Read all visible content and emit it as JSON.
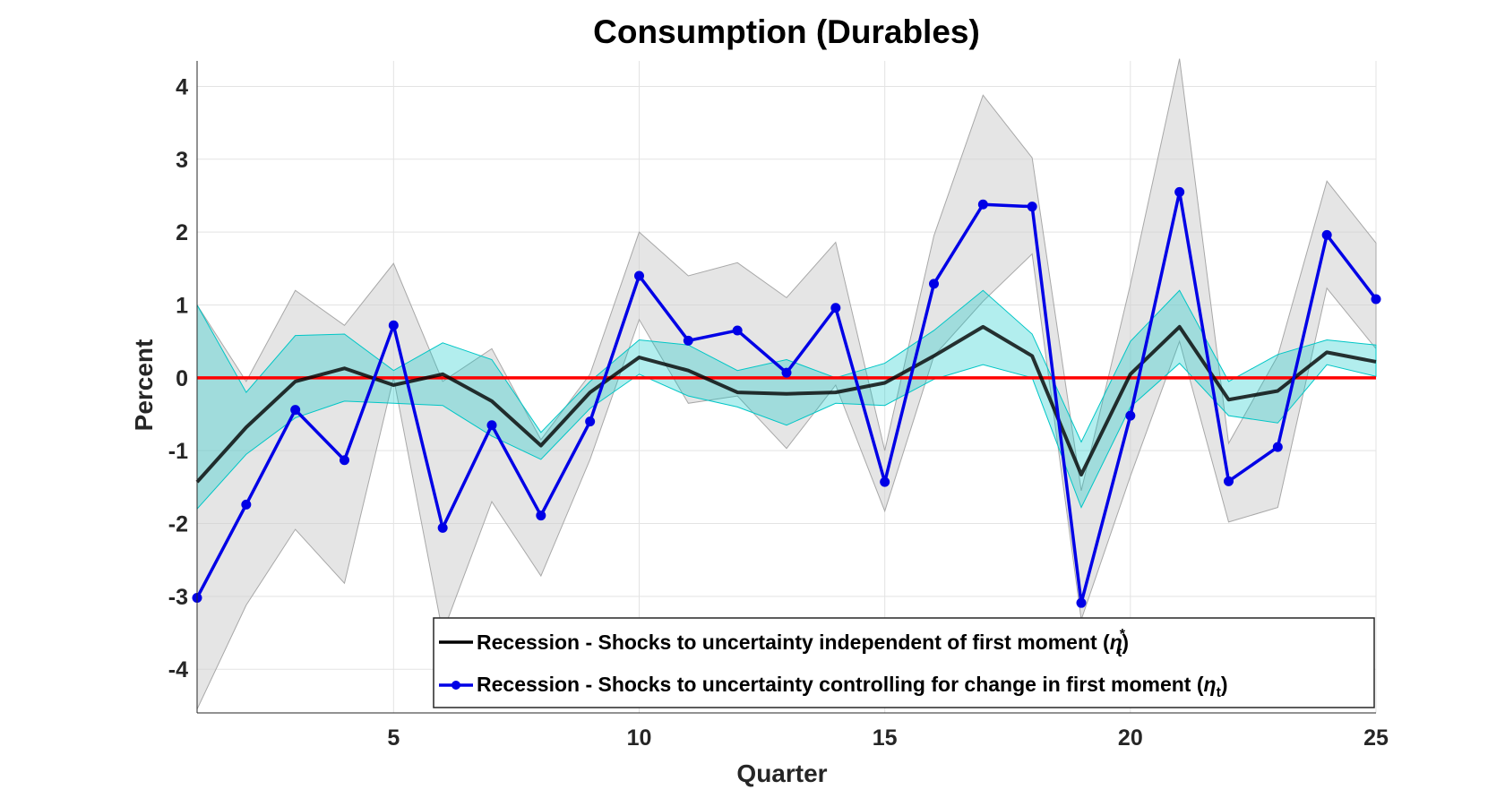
{
  "chart_data": {
    "type": "line",
    "title": "Consumption (Durables)",
    "xlabel": "Quarter",
    "ylabel": "Percent",
    "xlim": [
      1,
      25
    ],
    "ylim": [
      -4.6,
      4.35
    ],
    "xticks": [
      5,
      10,
      15,
      20,
      25
    ],
    "xtick_labels": [
      "5",
      "10",
      "15",
      "20",
      "25"
    ],
    "yticks": [
      4,
      3,
      2,
      1,
      0,
      -1,
      -2,
      -3,
      -4
    ],
    "ytick_labels": [
      "4",
      "3",
      "2",
      "1",
      "0",
      "-1",
      "-2",
      "-3",
      "-4"
    ],
    "grid": true,
    "legend_position": "bottom-right",
    "x": [
      1,
      2,
      3,
      4,
      5,
      6,
      7,
      8,
      9,
      10,
      11,
      12,
      13,
      14,
      15,
      16,
      17,
      18,
      19,
      20,
      21,
      22,
      23,
      24,
      25
    ],
    "zero_line": {
      "value": 0,
      "color": "#ff0000"
    },
    "series": [
      {
        "name": "Recession - Shocks to uncertainty independent of first moment",
        "legend_text": "Recession - Shocks to uncertainty independent of first moment (",
        "legend_symbol": "η",
        "legend_subscript": "t",
        "legend_superscript": "*",
        "legend_close": ")",
        "color": "#000000",
        "marker": "none",
        "values": [
          -1.43,
          -0.68,
          -0.05,
          0.13,
          -0.1,
          0.05,
          -0.32,
          -0.93,
          -0.2,
          0.28,
          0.1,
          -0.2,
          -0.22,
          -0.2,
          -0.07,
          0.3,
          0.7,
          0.3,
          -1.33,
          0.05,
          0.7,
          -0.3,
          -0.18,
          0.35,
          0.22
        ],
        "band_upper": [
          1.0,
          -0.2,
          0.58,
          0.6,
          0.1,
          0.48,
          0.25,
          -0.75,
          -0.05,
          0.52,
          0.45,
          0.1,
          0.25,
          0.0,
          0.2,
          0.65,
          1.2,
          0.6,
          -0.88,
          0.5,
          1.2,
          -0.05,
          0.32,
          0.52,
          0.45
        ],
        "band_lower": [
          -1.8,
          -1.05,
          -0.55,
          -0.32,
          -0.35,
          -0.38,
          -0.8,
          -1.12,
          -0.42,
          0.05,
          -0.25,
          -0.4,
          -0.65,
          -0.35,
          -0.38,
          -0.02,
          0.18,
          0.0,
          -1.78,
          -0.4,
          0.2,
          -0.52,
          -0.62,
          0.18,
          0.02
        ],
        "band_color": "#00c6c6",
        "wide_band_upper": [
          1.0,
          -0.05,
          1.2,
          0.72,
          1.57,
          -0.05,
          0.4,
          -0.85,
          0.05,
          2.0,
          1.4,
          1.58,
          1.1,
          1.86,
          -1.0,
          1.95,
          3.88,
          3.02,
          -1.55,
          1.28,
          4.38,
          -0.9,
          0.3,
          2.7,
          1.85
        ],
        "wide_band_lower": [
          -4.55,
          -3.12,
          -2.08,
          -2.82,
          0.0,
          -3.5,
          -1.7,
          -2.72,
          -1.12,
          0.8,
          -0.35,
          -0.25,
          -0.97,
          -0.1,
          -1.83,
          0.3,
          1.05,
          1.7,
          -3.32,
          -1.35,
          0.5,
          -1.98,
          -1.78,
          1.23,
          0.4
        ],
        "wide_band_color": "#cfcfcf"
      },
      {
        "name": "Recession - Shocks to uncertainty controlling for change in first moment",
        "legend_text": "Recession - Shocks to uncertainty controlling for change in first moment (",
        "legend_symbol": "η",
        "legend_subscript": "t",
        "legend_close": ")",
        "color": "#0000e6",
        "marker": "circle",
        "values": [
          -3.02,
          -1.74,
          -0.44,
          -1.13,
          0.72,
          -2.06,
          -0.65,
          -1.89,
          -0.6,
          1.4,
          0.51,
          0.65,
          0.07,
          0.96,
          -1.43,
          1.29,
          2.38,
          2.35,
          -3.09,
          -0.52,
          2.55,
          -1.42,
          -0.95,
          1.96,
          1.08
        ]
      }
    ]
  }
}
